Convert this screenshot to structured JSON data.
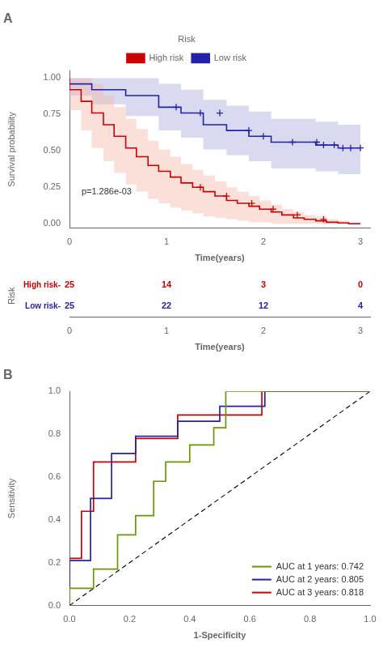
{
  "chart_data": [
    {
      "type": "line",
      "title": "A",
      "xlabel": "Time(years)",
      "ylabel": "Survival probability",
      "xlim": [
        0,
        3.1
      ],
      "ylim": [
        -0.03,
        1.05
      ],
      "xticks": [
        0,
        1,
        2,
        3
      ],
      "yticks": [
        {
          "value": 0.0,
          "label": "0.00"
        },
        0.25,
        {
          "value": 0.5,
          "label": "0.50"
        },
        0.75,
        {
          "value": 1.0,
          "label": "1.00"
        }
      ],
      "grid": false,
      "legend": "top",
      "legend_title": "Risk",
      "line_style": "steps",
      "annotation": "p=1.286e-03",
      "series": [
        {
          "name": "High risk",
          "color": "#CC0000",
          "fill_color": "#F5BBAA",
          "marker": "plus",
          "x": [
            0.0,
            0.12,
            0.23,
            0.35,
            0.46,
            0.58,
            0.69,
            0.81,
            0.92,
            1.04,
            1.15,
            1.27,
            1.38,
            1.5,
            1.62,
            1.73,
            1.85,
            1.96,
            2.08,
            2.19,
            2.31,
            2.42,
            2.54,
            2.65,
            2.77,
            2.88,
            3.0
          ],
          "values": [
            1.0,
            0.92,
            0.84,
            0.76,
            0.68,
            0.6,
            0.52,
            0.46,
            0.4,
            0.36,
            0.32,
            0.28,
            0.25,
            0.22,
            0.19,
            0.16,
            0.14,
            0.12,
            0.1,
            0.08,
            0.06,
            0.04,
            0.03,
            0.02,
            0.01,
            0.005,
            0.0
          ],
          "upper": [
            1.0,
            1.0,
            1.0,
            0.96,
            0.88,
            0.8,
            0.72,
            0.65,
            0.57,
            0.51,
            0.46,
            0.41,
            0.37,
            0.33,
            0.29,
            0.25,
            0.22,
            0.19,
            0.16,
            0.13,
            0.1,
            0.08,
            0.06,
            0.05,
            0.03,
            0.02,
            0.01
          ],
          "lower": [
            1.0,
            0.78,
            0.64,
            0.52,
            0.43,
            0.35,
            0.27,
            0.22,
            0.17,
            0.14,
            0.11,
            0.09,
            0.07,
            0.05,
            0.04,
            0.03,
            0.02,
            0.01,
            0.01,
            0.0,
            0.0,
            0.0,
            0.0,
            0.0,
            0.0,
            0.0,
            0.0
          ],
          "censor_x": [
            1.35,
            1.62,
            1.88,
            2.1,
            2.35,
            2.62
          ],
          "censor_values": [
            0.25,
            0.19,
            0.14,
            0.1,
            0.06,
            0.03
          ]
        },
        {
          "name": "Low risk",
          "color": "#2222AA",
          "fill_color": "#AAAADD",
          "marker": "plus",
          "x": [
            0.0,
            0.23,
            0.58,
            0.92,
            1.15,
            1.38,
            1.62,
            1.85,
            2.08,
            2.31,
            2.54,
            2.65,
            2.77,
            2.88,
            3.0
          ],
          "values": [
            1.0,
            0.96,
            0.92,
            0.88,
            0.8,
            0.76,
            0.68,
            0.64,
            0.6,
            0.56,
            0.56,
            0.54,
            0.54,
            0.52,
            0.52
          ],
          "upper": [
            1.0,
            1.0,
            1.0,
            1.0,
            0.96,
            0.92,
            0.85,
            0.81,
            0.77,
            0.72,
            0.72,
            0.7,
            0.7,
            0.68,
            0.68
          ],
          "lower": [
            1.0,
            0.88,
            0.82,
            0.74,
            0.64,
            0.59,
            0.51,
            0.47,
            0.43,
            0.38,
            0.38,
            0.36,
            0.36,
            0.34,
            0.34
          ],
          "censor_x": [
            1.1,
            1.35,
            1.55,
            1.85,
            2.0,
            2.3,
            2.55,
            2.62,
            2.73,
            2.82,
            2.9,
            3.0
          ],
          "censor_values": [
            0.8,
            0.76,
            0.76,
            0.64,
            0.6,
            0.56,
            0.56,
            0.54,
            0.54,
            0.52,
            0.52,
            0.52
          ]
        }
      ]
    },
    {
      "type": "table",
      "xlabel": "Time(years)",
      "ylabel": "Risk",
      "x": [
        0,
        1,
        2,
        3
      ],
      "xlim": [
        0,
        3.1
      ],
      "xticks": [
        0,
        1,
        2,
        3
      ],
      "grid": false,
      "data_labels": true,
      "series": [
        {
          "name": "High risk-",
          "color": "#CC0000",
          "values": [
            25,
            14,
            3,
            0
          ]
        },
        {
          "name": "Low risk-",
          "color": "#2222AA",
          "values": [
            25,
            22,
            12,
            4
          ]
        }
      ]
    },
    {
      "type": "line",
      "title": "B",
      "xlabel": "1-Specificity",
      "ylabel": "Sensitivity",
      "xlim": [
        0.0,
        1.0
      ],
      "ylim": [
        0.0,
        1.0
      ],
      "xticks": [
        {
          "value": 0.0,
          "label": "0.0"
        },
        0.2,
        0.4,
        0.6,
        0.8,
        {
          "value": 1.0,
          "label": "1.0"
        }
      ],
      "yticks": [
        {
          "value": 0.0,
          "label": "0.0"
        },
        0.2,
        0.4,
        0.6,
        0.8,
        {
          "value": 1.0,
          "label": "1.0"
        }
      ],
      "grid": false,
      "legend": "lower right",
      "series": [
        {
          "name": "AUC at 1 years: 0.742",
          "color": "#669900",
          "x": [
            0.0,
            0.0,
            0.08,
            0.08,
            0.16,
            0.16,
            0.22,
            0.22,
            0.28,
            0.28,
            0.32,
            0.32,
            0.4,
            0.4,
            0.48,
            0.48,
            0.52,
            0.52,
            0.6,
            0.6,
            0.68,
            0.68,
            1.0
          ],
          "values": [
            0.0,
            0.08,
            0.08,
            0.17,
            0.17,
            0.33,
            0.33,
            0.42,
            0.42,
            0.58,
            0.58,
            0.67,
            0.67,
            0.75,
            0.75,
            0.83,
            0.83,
            1.0,
            1.0,
            1.0,
            1.0,
            1.0,
            1.0
          ]
        },
        {
          "name": "AUC at 2 years: 0.805",
          "color": "#2222AA",
          "x": [
            0.0,
            0.0,
            0.07,
            0.07,
            0.14,
            0.14,
            0.22,
            0.22,
            0.36,
            0.36,
            0.5,
            0.5,
            0.57,
            0.57,
            0.65,
            0.65,
            0.72,
            0.72,
            1.0
          ],
          "values": [
            0.0,
            0.21,
            0.21,
            0.5,
            0.5,
            0.71,
            0.71,
            0.79,
            0.79,
            0.86,
            0.86,
            0.93,
            0.93,
            0.93,
            0.93,
            1.0,
            1.0,
            1.0,
            1.0
          ]
        },
        {
          "name": "AUC at 3 years: 0.818",
          "color": "#CC0000",
          "x": [
            0.0,
            0.0,
            0.04,
            0.04,
            0.08,
            0.08,
            0.14,
            0.14,
            0.22,
            0.22,
            0.36,
            0.36,
            0.5,
            0.5,
            0.64,
            0.64,
            0.72,
            0.72,
            0.76,
            0.76,
            1.0
          ],
          "values": [
            0.0,
            0.22,
            0.22,
            0.44,
            0.44,
            0.67,
            0.67,
            0.67,
            0.67,
            0.78,
            0.78,
            0.89,
            0.89,
            0.89,
            0.89,
            1.0,
            1.0,
            1.0,
            1.0,
            1.0,
            1.0
          ]
        },
        {
          "color": "#000000",
          "line_style": "dashed",
          "x": [
            0,
            1
          ],
          "values": [
            0,
            1
          ]
        }
      ]
    }
  ]
}
